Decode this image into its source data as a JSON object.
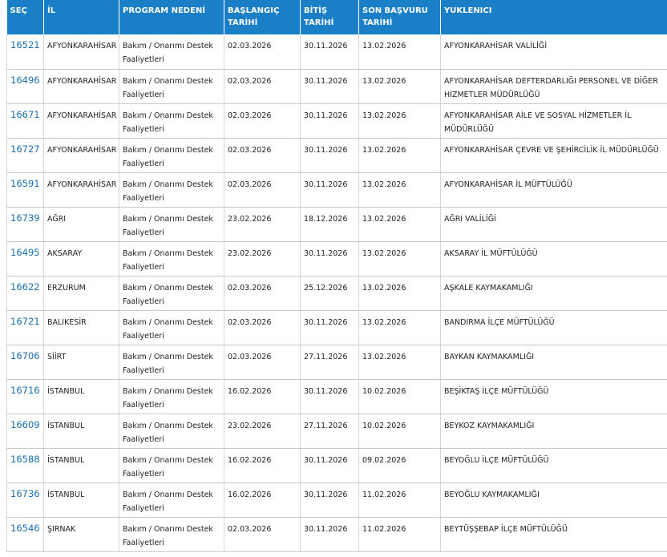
{
  "table": {
    "header": [
      "SEÇ",
      "İL",
      "PROGRAM NEDENİ",
      "BAŞLANGIÇ TARİHİ",
      "BİTİŞ TARİHİ",
      "SON BAŞVURU TARİHİ",
      "YUKLENICI"
    ],
    "rows": [
      [
        "16521",
        "AFYONKARAHİSAR",
        "Bakım / Onarımı Destek Faaliyetleri",
        "02.03.2026",
        "30.11.2026",
        "13.02.2026",
        "AFYONKARAHİSAR VALİLİĞİ"
      ],
      [
        "16496",
        "AFYONKARAHİSAR",
        "Bakım / Onarımı Destek Faaliyetleri",
        "02.03.2026",
        "30.11.2026",
        "13.02.2026",
        "AFYONKARAHİSAR DEFTERDARLIĞI PERSONEL VE DİĞER HİZMETLER MÜDÜRLÜĞÜ"
      ],
      [
        "16671",
        "AFYONKARAHİSAR",
        "Bakım / Onarımı Destek Faaliyetleri",
        "02.03.2026",
        "30.11.2026",
        "13.02.2026",
        "AFYONKARAHİSAR AİLE VE SOSYAL HİZMETLER İL MÜDÜRLÜĞÜ"
      ],
      [
        "16727",
        "AFYONKARAHİSAR",
        "Bakım / Onarımı Destek Faaliyetleri",
        "02.03.2026",
        "30.11.2026",
        "13.02.2026",
        "AFYONKARAHİSAR ÇEVRE VE ŞEHİRCİLİK İL MÜDÜRLÜĞÜ"
      ],
      [
        "16591",
        "AFYONKARAHİSAR",
        "Bakım / Onarımı Destek Faaliyetleri",
        "02.03.2026",
        "30.11.2026",
        "13.02.2026",
        "AFYONKARAHİSAR İL MÜFTÜLÜĞÜ"
      ],
      [
        "16739",
        "AĞRI",
        "Bakım / Onarımı Destek Faaliyetleri",
        "23.02.2026",
        "18.12.2026",
        "13.02.2026",
        "AĞRI VALİLİĞİ"
      ],
      [
        "16495",
        "AKSARAY",
        "Bakım / Onarımı Destek Faaliyetleri",
        "23.02.2026",
        "30.11.2026",
        "13.02.2026",
        "AKSARAY İL MÜFTÜLÜĞÜ"
      ],
      [
        "16622",
        "ERZURUM",
        "Bakım / Onarımı Destek Faaliyetleri",
        "02.03.2026",
        "25.12.2026",
        "13.02.2026",
        "AŞKALE KAYMAKAMLIĞI"
      ],
      [
        "16721",
        "BALIKESİR",
        "Bakım / Onarımı Destek Faaliyetleri",
        "02.03.2026",
        "30.11.2026",
        "13.02.2026",
        "BANDIRMA İLÇE MÜFTÜLÜĞÜ"
      ],
      [
        "16706",
        "SİİRT",
        "Bakım / Onarımı Destek Faaliyetleri",
        "02.03.2026",
        "27.11.2026",
        "13.02.2026",
        "BAYKAN KAYMAKAMLIĞI"
      ],
      [
        "16716",
        "İSTANBUL",
        "Bakım / Onarımı Destek Faaliyetleri",
        "16.02.2026",
        "30.11.2026",
        "10.02.2026",
        "BEŞİKTAŞ İLÇE MÜFTÜLÜĞÜ"
      ],
      [
        "16609",
        "İSTANBUL",
        "Bakım / Onarımı Destek Faaliyetleri",
        "23.02.2026",
        "27.11.2026",
        "10.02.2026",
        "BEYKOZ KAYMAKAMLIĞI"
      ],
      [
        "16588",
        "İSTANBUL",
        "Bakım / Onarımı Destek Faaliyetleri",
        "16.02.2026",
        "30.11.2026",
        "09.02.2026",
        "BEYOĞLU İLÇE MÜFTÜLÜĞÜ"
      ],
      [
        "16736",
        "İSTANBUL",
        "Bakım / Onarımı Destek Faaliyetleri",
        "16.02.2026",
        "30.11.2026",
        "11.02.2026",
        "BEYOĞLU KAYMAKAMLIĞI"
      ],
      [
        "16546",
        "ŞIRNAK",
        "Bakım / Onarımı Destek Faaliyetleri",
        "02.03.2026",
        "30.11.2026",
        "11.02.2026",
        "BEYTÜŞŞEBAP İLÇE MÜFTÜLÜĞÜ"
      ]
    ]
  }
}
